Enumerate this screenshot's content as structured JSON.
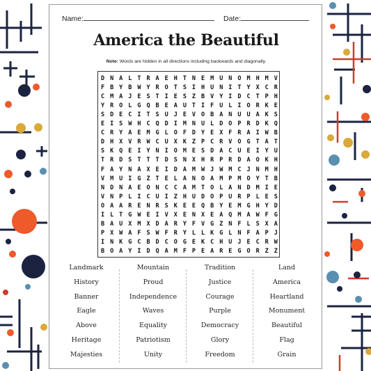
{
  "page": {
    "name_label": "Name:",
    "date_label": "Date:",
    "title": "America the Beautiful",
    "note_label": "Note:",
    "note_text": " Words are hidden in all directions including backwards and diagonally."
  },
  "grid": [
    "DNALTRAEHTNEMUNOMHMV",
    "FBYBWYROTSIHUNITYXCR",
    "CMAJESTIESZBVYIDCTPH",
    "YROLGQBEAUTIFULIORKE",
    "SDECITSUJEVOBANUUAKS",
    "EISWHCQDIMNULDOPRDKQ",
    "CRYAEMGLOFDYEXFRAIWB",
    "DHXVRWCUXKZPCRVOGTAT",
    "SKQEIYNIOMESDACUEIYU",
    "TRDSTTTDSNXHRPRDAOKH",
    "FAYNAXEIDAMWJWMCJNMH",
    "VMUIGZTELANOAMPMOYTB",
    "NDNAEONCCAMTOLANDMIE",
    "VNPLICUIZHUDOPURPLES",
    "OAARENRSKEEQBYEMGHYD",
    "ILTGWEIVXENXEAQMAWFG",
    "BAUXMXDARYFVGZNFLSXA",
    "PXWAFSWFRYLLKGLNFAPJ",
    "INKGCBDCOGEKCHUJECRW",
    "BOAYIDQAMFPEAREGORZZ"
  ],
  "word_columns": [
    [
      "Landmark",
      "History",
      "Banner",
      "Eagle",
      "Above",
      "Heritage",
      "Majesties"
    ],
    [
      "Mountain",
      "Proud",
      "Independence",
      "Waves",
      "Equality",
      "Patriotism",
      "Unity"
    ],
    [
      "Tradition",
      "Justice",
      "Courage",
      "Purple",
      "Democracy",
      "Glory",
      "Freedom"
    ],
    [
      "Land",
      "America",
      "Heartland",
      "Monument",
      "Beautiful",
      "Flag",
      "Grain"
    ]
  ],
  "colors": {
    "navy": "#1b2340",
    "orange": "#ef5a2a",
    "gold": "#d9a93a",
    "teal": "#5a8fb0",
    "red": "#d33a2c"
  }
}
